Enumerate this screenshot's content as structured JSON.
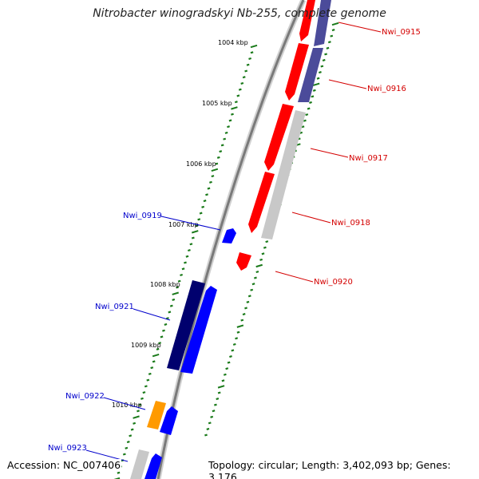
{
  "title": "Nitrobacter winogradskyi Nb-255, complete genome",
  "footer": {
    "accession": "Accession: NC_007406",
    "topology": "Topology: circular; Length: 3,402,093 bp; Genes: 3,176"
  },
  "colors": {
    "backbone": "#8a8a8a",
    "tick_minor": "#1a7a1a",
    "label_forward": "#d40000",
    "label_reverse": "#0000cc",
    "red": "#ff0000",
    "blue": "#0000ff",
    "navy": "#00006e",
    "slate": "#4b4b9a",
    "gray": "#c8c8c8",
    "orange": "#ff9a00"
  },
  "scale_labels": [
    "1004 kbp",
    "1005 kbp",
    "1006 kbp",
    "1007 kbp",
    "1008 kbp",
    "1009 kbp",
    "1010 kbp"
  ],
  "genes": [
    {
      "id": "Nwi_0915",
      "strand": "forward"
    },
    {
      "id": "Nwi_0916",
      "strand": "forward"
    },
    {
      "id": "Nwi_0917",
      "strand": "forward"
    },
    {
      "id": "Nwi_0918",
      "strand": "forward"
    },
    {
      "id": "Nwi_0919",
      "strand": "reverse"
    },
    {
      "id": "Nwi_0920",
      "strand": "forward"
    },
    {
      "id": "Nwi_0921",
      "strand": "reverse"
    },
    {
      "id": "Nwi_0922",
      "strand": "reverse"
    },
    {
      "id": "Nwi_0923",
      "strand": "reverse"
    }
  ]
}
